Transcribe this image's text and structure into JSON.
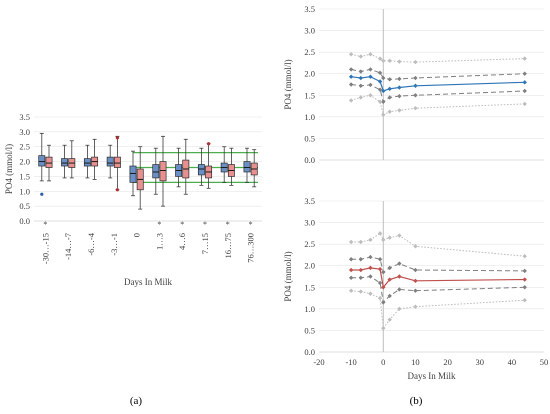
{
  "panel_labels": [
    "(a)",
    "(b)"
  ],
  "chart_data": [
    {
      "type": "box",
      "id": "a",
      "ylabel": "PO4 (mmol/l)",
      "xlabel": "Days In Milk",
      "ylim": [
        0,
        3.5
      ],
      "yticks": [
        0.0,
        0.5,
        1.0,
        1.5,
        2.0,
        2.5,
        3.0,
        3.5
      ],
      "ytick_labels": [
        "0.0",
        "0.5",
        "1.0",
        "1.5",
        "2.0",
        "2.5",
        "3.0",
        "3.5"
      ],
      "categories": [
        "-30…-15",
        "-14…-7",
        "-6…-4",
        "-3…-1",
        "0",
        "1…3",
        "4…6",
        "7…15",
        "16…75",
        "76…300"
      ],
      "significance_marks": [
        true,
        false,
        false,
        false,
        false,
        true,
        true,
        true,
        true,
        true
      ],
      "reference_lines": [
        1.3,
        1.8,
        2.3
      ],
      "reference_line_color": "#4cae4c",
      "series": [
        {
          "color": "#6a8fc7",
          "boxes": [
            {
              "min": 1.35,
              "q1": 1.85,
              "median": 2.0,
              "q3": 2.2,
              "max": 2.95,
              "outliers": [
                0.9
              ]
            },
            {
              "min": 1.45,
              "q1": 1.85,
              "median": 1.95,
              "q3": 2.1,
              "max": 2.55,
              "outliers": []
            },
            {
              "min": 1.45,
              "q1": 1.85,
              "median": 1.95,
              "q3": 2.1,
              "max": 2.55,
              "outliers": []
            },
            {
              "min": 1.45,
              "q1": 1.85,
              "median": 1.95,
              "q3": 2.15,
              "max": 2.55,
              "outliers": []
            },
            {
              "min": 0.85,
              "q1": 1.3,
              "median": 1.6,
              "q3": 1.85,
              "max": 2.35,
              "outliers": []
            },
            {
              "min": 0.9,
              "q1": 1.45,
              "median": 1.65,
              "q3": 1.9,
              "max": 2.45,
              "outliers": []
            },
            {
              "min": 1.15,
              "q1": 1.5,
              "median": 1.7,
              "q3": 1.9,
              "max": 2.45,
              "outliers": []
            },
            {
              "min": 1.2,
              "q1": 1.55,
              "median": 1.75,
              "q3": 1.9,
              "max": 2.45,
              "outliers": []
            },
            {
              "min": 1.3,
              "q1": 1.65,
              "median": 1.8,
              "q3": 1.95,
              "max": 2.5,
              "outliers": []
            },
            {
              "min": 1.3,
              "q1": 1.65,
              "median": 1.8,
              "q3": 2.0,
              "max": 2.45,
              "outliers": []
            }
          ]
        },
        {
          "color": "#e89090",
          "boxes": [
            {
              "min": 1.35,
              "q1": 1.8,
              "median": 1.95,
              "q3": 2.15,
              "max": 2.55,
              "outliers": []
            },
            {
              "min": 1.45,
              "q1": 1.8,
              "median": 1.95,
              "q3": 2.1,
              "max": 2.7,
              "outliers": []
            },
            {
              "min": 1.4,
              "q1": 1.85,
              "median": 2.0,
              "q3": 2.15,
              "max": 2.75,
              "outliers": []
            },
            {
              "min": 1.05,
              "q1": 1.8,
              "median": 1.95,
              "q3": 2.15,
              "max": 2.85,
              "outliers": [
                1.05,
                2.8
              ]
            },
            {
              "min": 0.4,
              "q1": 1.05,
              "median": 1.4,
              "q3": 1.75,
              "max": 2.5,
              "outliers": []
            },
            {
              "min": 0.5,
              "q1": 1.35,
              "median": 1.7,
              "q3": 2.0,
              "max": 2.85,
              "outliers": []
            },
            {
              "min": 0.9,
              "q1": 1.45,
              "median": 1.75,
              "q3": 2.05,
              "max": 2.75,
              "outliers": []
            },
            {
              "min": 1.1,
              "q1": 1.45,
              "median": 1.65,
              "q3": 1.85,
              "max": 2.6,
              "outliers": [
                2.6
              ]
            },
            {
              "min": 1.2,
              "q1": 1.5,
              "median": 1.7,
              "q3": 1.9,
              "max": 2.45,
              "outliers": []
            },
            {
              "min": 1.15,
              "q1": 1.55,
              "median": 1.75,
              "q3": 1.95,
              "max": 2.4,
              "outliers": []
            }
          ]
        }
      ]
    },
    {
      "type": "line",
      "id": "b-top",
      "ylabel": "PO4 (mmol/l)",
      "xlabel": "",
      "xlim": [
        -20,
        50
      ],
      "ylim": [
        0,
        3.5
      ],
      "yticks": [
        0.0,
        0.5,
        1.0,
        1.5,
        2.0,
        2.5,
        3.0,
        3.5
      ],
      "ytick_labels": [
        "0.0",
        "0.5",
        "1.0",
        "1.5",
        "2.0",
        "2.5",
        "3.0",
        "3.5"
      ],
      "vertical_line_x": 0,
      "x": [
        -10,
        -7,
        -4,
        -1,
        0,
        2,
        5,
        10,
        44
      ],
      "series": [
        {
          "style": "dotted-light",
          "color": "#bdbdbd",
          "values": [
            2.45,
            2.4,
            2.45,
            2.35,
            2.3,
            2.3,
            2.28,
            2.27,
            2.35
          ]
        },
        {
          "style": "dashed-dark",
          "color": "#7f7f7f",
          "values": [
            2.1,
            2.05,
            2.1,
            2.02,
            1.9,
            1.87,
            1.88,
            1.9,
            2.0
          ]
        },
        {
          "style": "solid",
          "color": "#2e75b6",
          "values": [
            1.93,
            1.9,
            1.93,
            1.82,
            1.6,
            1.65,
            1.68,
            1.72,
            1.8
          ]
        },
        {
          "style": "dashed-dark",
          "color": "#7f7f7f",
          "values": [
            1.75,
            1.72,
            1.74,
            1.63,
            1.35,
            1.45,
            1.48,
            1.5,
            1.6
          ]
        },
        {
          "style": "dotted-light",
          "color": "#bdbdbd",
          "values": [
            1.38,
            1.45,
            1.5,
            1.35,
            1.05,
            1.12,
            1.15,
            1.2,
            1.3
          ]
        }
      ]
    },
    {
      "type": "line",
      "id": "b-bottom",
      "ylabel": "PO4 (mmol/l)",
      "xlabel": "Days In Milk",
      "xlim": [
        -20,
        50
      ],
      "ylim": [
        0,
        3.5
      ],
      "xticks": [
        -20,
        -10,
        0,
        10,
        20,
        30,
        40,
        50
      ],
      "xtick_labels": [
        "-20",
        "-10",
        "0",
        "10",
        "20",
        "30",
        "40",
        "50"
      ],
      "yticks": [
        0.0,
        0.5,
        1.0,
        1.5,
        2.0,
        2.5,
        3.0,
        3.5
      ],
      "ytick_labels": [
        "0.0",
        "0.5",
        "1.0",
        "1.5",
        "2.0",
        "2.5",
        "3.0",
        "3.5"
      ],
      "vertical_line_x": 0,
      "x": [
        -10,
        -7,
        -4,
        -1,
        0,
        2,
        5,
        10,
        44
      ],
      "series": [
        {
          "style": "dotted-light",
          "color": "#bdbdbd",
          "values": [
            2.55,
            2.55,
            2.6,
            2.75,
            2.6,
            2.65,
            2.7,
            2.45,
            2.22
          ]
        },
        {
          "style": "dashed-dark",
          "color": "#7f7f7f",
          "values": [
            2.15,
            2.15,
            2.2,
            2.15,
            1.85,
            1.95,
            2.05,
            1.9,
            1.88
          ]
        },
        {
          "style": "solid",
          "color": "#c0504d",
          "values": [
            1.9,
            1.9,
            1.95,
            1.92,
            1.5,
            1.68,
            1.75,
            1.65,
            1.68
          ]
        },
        {
          "style": "dashed-dark",
          "color": "#7f7f7f",
          "values": [
            1.72,
            1.72,
            1.75,
            1.6,
            1.15,
            1.3,
            1.45,
            1.42,
            1.5
          ]
        },
        {
          "style": "dotted-light",
          "color": "#bdbdbd",
          "values": [
            1.42,
            1.4,
            1.35,
            1.25,
            0.55,
            0.75,
            1.0,
            1.05,
            1.2
          ]
        }
      ]
    }
  ]
}
